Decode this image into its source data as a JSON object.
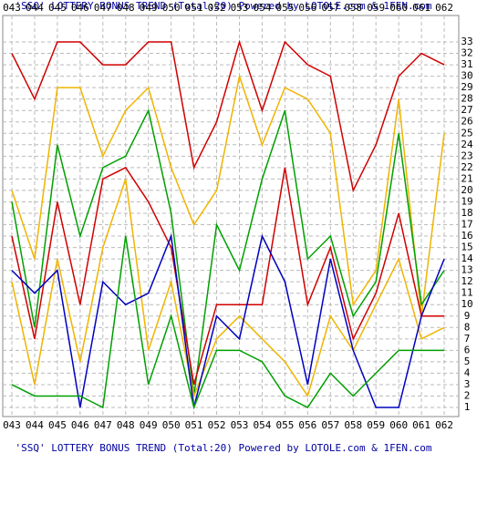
{
  "chart_data": {
    "type": "line",
    "title": "'SSQ' LOTTERY BONUS TREND (Total:20)  Powered by LOTOLE.com & 1FEN.com",
    "categories": [
      "043",
      "044",
      "045",
      "046",
      "047",
      "048",
      "049",
      "050",
      "051",
      "052",
      "053",
      "054",
      "055",
      "056",
      "057",
      "058",
      "059",
      "060",
      "061",
      "062"
    ],
    "series": [
      {
        "color": "#d00000",
        "values": [
          32,
          28,
          33,
          33,
          31,
          31,
          33,
          33,
          22,
          26,
          33,
          27,
          33,
          31,
          30,
          20,
          24,
          30,
          32,
          31
        ]
      },
      {
        "color": "#f0b400",
        "values": [
          20,
          14,
          29,
          29,
          23,
          27,
          29,
          22,
          17,
          20,
          30,
          24,
          29,
          28,
          25,
          10,
          13,
          28,
          9,
          25
        ]
      },
      {
        "color": "#00a000",
        "values": [
          19,
          8,
          24,
          16,
          22,
          23,
          27,
          18,
          2,
          17,
          13,
          21,
          27,
          14,
          16,
          9,
          12,
          25,
          10,
          13
        ]
      },
      {
        "color": "#d00000",
        "values": [
          16,
          7,
          19,
          10,
          21,
          22,
          19,
          15,
          3,
          10,
          10,
          10,
          22,
          10,
          15,
          7,
          11,
          18,
          9,
          9
        ]
      },
      {
        "color": "#f0b400",
        "values": [
          12,
          3,
          14,
          5,
          15,
          21,
          6,
          12,
          2,
          7,
          9,
          7,
          5,
          2,
          9,
          6,
          10,
          14,
          7,
          8
        ]
      },
      {
        "color": "#0000c0",
        "values": [
          13,
          11,
          13,
          1,
          12,
          10,
          11,
          16,
          1,
          9,
          7,
          16,
          12,
          3,
          14,
          6,
          1,
          1,
          9,
          14
        ]
      },
      {
        "color": "#00a000",
        "values": [
          3,
          2,
          2,
          2,
          1,
          16,
          3,
          9,
          1,
          6,
          6,
          5,
          2,
          1,
          4,
          2,
          4,
          6,
          6,
          6
        ]
      }
    ],
    "ylim": [
      1,
      33
    ],
    "yticks": [
      1,
      2,
      3,
      4,
      5,
      6,
      7,
      8,
      9,
      10,
      11,
      12,
      13,
      14,
      15,
      16,
      17,
      18,
      19,
      20,
      21,
      22,
      23,
      24,
      25,
      26,
      27,
      28,
      29,
      30,
      31,
      32,
      33
    ],
    "grid": true
  }
}
